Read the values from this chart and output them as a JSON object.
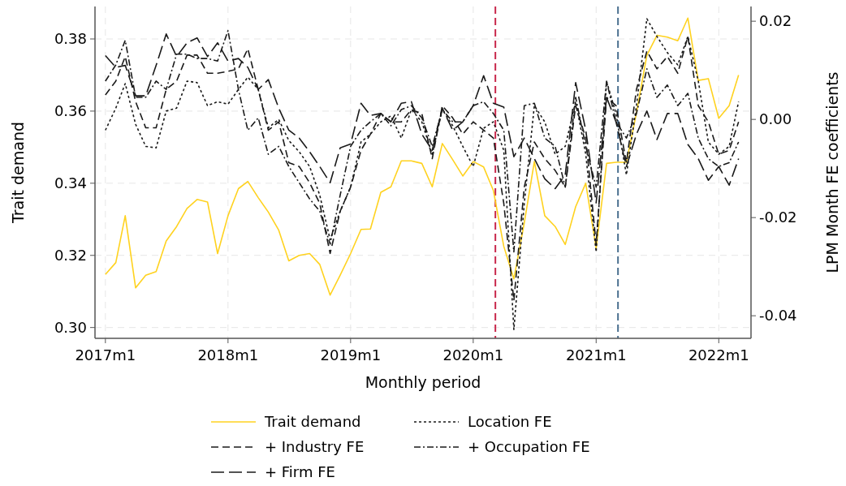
{
  "chart_data": {
    "type": "line",
    "xlabel": "Monthly period",
    "ylabel": "Trait demand",
    "y2label": "LPM Month FE coefficients",
    "x": [
      "2017-01",
      "2017-02",
      "2017-03",
      "2017-04",
      "2017-05",
      "2017-06",
      "2017-07",
      "2017-08",
      "2017-09",
      "2017-10",
      "2017-11",
      "2017-12",
      "2018-01",
      "2018-02",
      "2018-03",
      "2018-04",
      "2018-05",
      "2018-06",
      "2018-07",
      "2018-08",
      "2018-09",
      "2018-10",
      "2018-11",
      "2018-12",
      "2019-01",
      "2019-02",
      "2019-03",
      "2019-04",
      "2019-05",
      "2019-06",
      "2019-07",
      "2019-08",
      "2019-09",
      "2019-10",
      "2019-11",
      "2019-12",
      "2020-01",
      "2020-02",
      "2020-03",
      "2020-04",
      "2020-05",
      "2020-06",
      "2020-07",
      "2020-08",
      "2020-09",
      "2020-10",
      "2020-11",
      "2020-12",
      "2021-01",
      "2021-02",
      "2021-03",
      "2021-04",
      "2021-05",
      "2021-06",
      "2021-07",
      "2021-08",
      "2021-09",
      "2021-10",
      "2021-11",
      "2021-12",
      "2022-01",
      "2022-02",
      "2022-03"
    ],
    "xlim": [
      "2016-12",
      "2022-04-07"
    ],
    "xticks": [
      {
        "value": "2017-01",
        "label": "2017m1"
      },
      {
        "value": "2018-01",
        "label": "2018m1"
      },
      {
        "value": "2019-01",
        "label": "2019m1"
      },
      {
        "value": "2020-01",
        "label": "2020m1"
      },
      {
        "value": "2021-01",
        "label": "2021m1"
      },
      {
        "value": "2022-01",
        "label": "2022m1"
      }
    ],
    "ylim": [
      0.297,
      0.389
    ],
    "yticks": [
      {
        "value": 0.3,
        "label": "0.30"
      },
      {
        "value": 0.32,
        "label": "0.32"
      },
      {
        "value": 0.34,
        "label": "0.34"
      },
      {
        "value": 0.36,
        "label": "0.36"
      },
      {
        "value": 0.38,
        "label": "0.38"
      }
    ],
    "y2lim": [
      -0.0446,
      0.023
    ],
    "y2ticks": [
      {
        "value": -0.04,
        "label": "-0.04"
      },
      {
        "value": -0.02,
        "label": "-0.02"
      },
      {
        "value": 0,
        "label": "0.00"
      },
      {
        "value": 0.02,
        "label": "0.02"
      }
    ],
    "grid": true,
    "legend": "bottom",
    "ref_lines": [
      {
        "axis": "x",
        "value": "2020-03-07",
        "color": "#c8284b",
        "line_style": "dashed"
      },
      {
        "axis": "x",
        "value": "2021-03-07",
        "color": "#4a6f8f",
        "line_style": "dashed"
      }
    ],
    "series": [
      {
        "name": "Trait demand",
        "color": "#ffd21f",
        "line_style": "solid",
        "values": [
          0.3147,
          0.318,
          0.331,
          0.311,
          0.3145,
          0.3155,
          0.324,
          0.328,
          0.333,
          0.3355,
          0.3348,
          0.3205,
          0.331,
          0.3385,
          0.3405,
          0.336,
          0.332,
          0.327,
          0.3185,
          0.32,
          0.3205,
          0.3175,
          0.309,
          0.3145,
          0.3205,
          0.3272,
          0.3273,
          0.3375,
          0.339,
          0.3462,
          0.3462,
          0.3455,
          0.339,
          0.351,
          0.3465,
          0.342,
          0.346,
          0.3445,
          0.338,
          0.3225,
          0.3135,
          0.329,
          0.346,
          0.331,
          0.328,
          0.323,
          0.3335,
          0.34,
          0.322,
          0.3455,
          0.3458,
          0.3458,
          0.3595,
          0.3755,
          0.381,
          0.3805,
          0.3795,
          0.3858,
          0.3685,
          0.369,
          0.358,
          0.3615,
          0.37
        ]
      },
      {
        "name": "Location FE",
        "color": "#1a1a1a",
        "line_style": "dotted",
        "axis": "y2",
        "values": [
          -0.0022,
          0.0023,
          0.0073,
          -0.001,
          -0.0055,
          -0.0058,
          0.0017,
          0.0023,
          0.0078,
          0.0075,
          0.0028,
          0.0036,
          0.0031,
          0.0061,
          0.0086,
          0.0061,
          -0.0017,
          0,
          -0.0043,
          -0.0066,
          -0.0096,
          -0.0154,
          -0.0245,
          -0.0187,
          -0.0138,
          -0.0046,
          -0.003,
          -0.0005,
          0.0007,
          -0.0038,
          0.002,
          -0.0005,
          -0.0071,
          0.002,
          -0.0013,
          -0.0055,
          -0.0096,
          -0.0018,
          -0.0005,
          -0.0063,
          -0.0428,
          -0.0171,
          0.0028,
          -0.0005,
          -0.0071,
          -0.0055,
          0.0036,
          -0.0071,
          -0.027,
          0.0078,
          0.0012,
          -0.0113,
          0.0028,
          0.0205,
          0.0169,
          0.0136,
          0.0111,
          0.0169,
          0.0078,
          -0.0046,
          -0.0071,
          -0.0055,
          0.0036
        ]
      },
      {
        "name": "+ Industry FE",
        "color": "#1a1a1a",
        "line_style": "dashed",
        "axis": "y2",
        "values": [
          0.005,
          0.0078,
          0.0128,
          0.0036,
          -0.0017,
          -0.0017,
          0.0061,
          0.0078,
          0.0131,
          0.0131,
          0.0094,
          0.0094,
          0.0098,
          0.0103,
          0.0144,
          0.0061,
          -0.0022,
          -0.0005,
          -0.0088,
          -0.0096,
          -0.0129,
          -0.0171,
          -0.0273,
          -0.0187,
          -0.0138,
          -0.0063,
          -0.003,
          0.0012,
          -0.0005,
          -0.0005,
          0.002,
          0.0012,
          -0.008,
          0.0028,
          0.0003,
          -0.003,
          -0.0005,
          -0.0022,
          -0.0038,
          -0.0171,
          -0.0369,
          -0.0138,
          -0.0046,
          -0.008,
          -0.0104,
          -0.0138,
          0.0028,
          -0.0038,
          -0.0254,
          0.0045,
          0.0028,
          -0.0088,
          0.0061,
          0.0139,
          0.0103,
          0.0128,
          0.0094,
          0.0169,
          0.0028,
          -0.0005,
          -0.0071,
          -0.0063,
          -0.0005
        ]
      },
      {
        "name": "+ Occupation FE",
        "color": "#1a1a1a",
        "line_style": "dashdot",
        "axis": "y2",
        "values": [
          0.0078,
          0.0111,
          0.0161,
          0.0045,
          0.0045,
          0.0078,
          0.0061,
          0.0133,
          0.0133,
          0.0124,
          0.0124,
          0.0119,
          0.0181,
          0.0061,
          -0.0022,
          0.0003,
          -0.0071,
          -0.0055,
          -0.0096,
          -0.0129,
          -0.0162,
          -0.0187,
          -0.0254,
          -0.0154,
          -0.0055,
          -0.0022,
          -0.0005,
          0.0012,
          -0.0013,
          0.002,
          0.0028,
          0.0003,
          -0.0055,
          0.002,
          -0.0005,
          -0.0005,
          0.0028,
          0.0036,
          0.0012,
          -0.0022,
          -0.027,
          0.0028,
          0.0033,
          -0.0038,
          -0.0055,
          -0.0138,
          0.0045,
          -0.0055,
          -0.0138,
          0.0078,
          -0.0005,
          -0.0038,
          0.0012,
          0.0103,
          0.0045,
          0.007,
          0.0028,
          0.0053,
          -0.0038,
          -0.008,
          -0.0096,
          -0.0088,
          -0.0046
        ]
      },
      {
        "name": "+ Firm FE",
        "color": "#1a1a1a",
        "line_style": "longdash",
        "axis": "y2",
        "values": [
          0.013,
          0.0106,
          0.011,
          0.0048,
          0.0048,
          0.011,
          0.0174,
          0.0128,
          0.0156,
          0.0166,
          0.0128,
          0.0156,
          0.0119,
          0.0124,
          0.0106,
          0.0061,
          0.0081,
          0.0023,
          -0.0022,
          -0.0038,
          -0.0066,
          -0.0096,
          -0.0129,
          -0.0058,
          -0.005,
          0.0033,
          0.0008,
          0.0012,
          -0.0005,
          0.0033,
          0.0036,
          -0.003,
          -0.0063,
          0.0023,
          -0.0022,
          -0.0005,
          0.0028,
          0.0089,
          0.0033,
          0.0025,
          -0.0076,
          -0.0038,
          -0.008,
          -0.0121,
          -0.0141,
          -0.0113,
          0.0075,
          -0.0022,
          -0.017,
          0.0045,
          -0.0005,
          -0.0096,
          -0.003,
          0.0017,
          -0.0041,
          0.0012,
          0.0012,
          -0.0051,
          -0.008,
          -0.0124,
          -0.0096,
          -0.0134,
          -0.008
        ]
      }
    ]
  }
}
